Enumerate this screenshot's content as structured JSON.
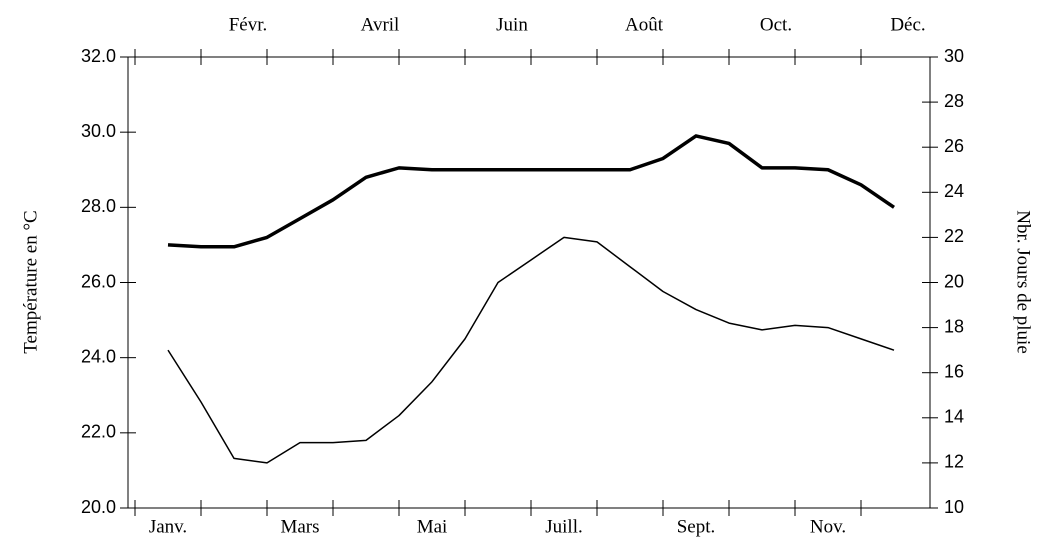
{
  "chart_data": {
    "type": "line",
    "categories": [
      "Janv.",
      null,
      "Févr.",
      null,
      "Mars",
      null,
      "Avril",
      null,
      "Mai",
      null,
      "Juin",
      null,
      "Juill.",
      null,
      "Août",
      null,
      "Sept.",
      null,
      "Oct.",
      null,
      "Nov.",
      null,
      "Déc."
    ],
    "ylabel": "Température en  °C",
    "y2label": "Nbr. Jours de pluie",
    "ylim": [
      20,
      32
    ],
    "yticks": [
      {
        "value": 20,
        "label": "20.0"
      },
      {
        "value": 22,
        "label": "22.0"
      },
      {
        "value": 24,
        "label": "24.0"
      },
      {
        "value": 26,
        "label": "26.0"
      },
      {
        "value": 28,
        "label": "28.0"
      },
      {
        "value": 30,
        "label": "30.0"
      },
      {
        "value": 32,
        "label": "32.0"
      }
    ],
    "y2lim": [
      10,
      30
    ],
    "y2ticks": [
      10,
      12,
      14,
      16,
      18,
      20,
      22,
      24,
      26,
      28,
      30
    ],
    "series": [
      {
        "color": "#000000",
        "values": [
          27.0,
          26.95,
          26.95,
          27.2,
          27.7,
          28.2,
          28.8,
          29.05,
          29.0,
          29.0,
          29.0,
          29.0,
          29.0,
          29.0,
          29.0,
          29.3,
          29.9,
          29.7,
          29.05,
          29.05,
          29.0,
          28.6,
          28.0
        ]
      },
      {
        "color": "#000000",
        "axis": "y2",
        "values": [
          17.0,
          14.7,
          12.2,
          12.0,
          12.9,
          12.9,
          13.0,
          14.1,
          15.6,
          17.5,
          20.0,
          21.0,
          22.0,
          21.8,
          20.7,
          19.6,
          18.8,
          18.2,
          17.9,
          18.1,
          18.0,
          17.5,
          17.0
        ]
      }
    ]
  }
}
